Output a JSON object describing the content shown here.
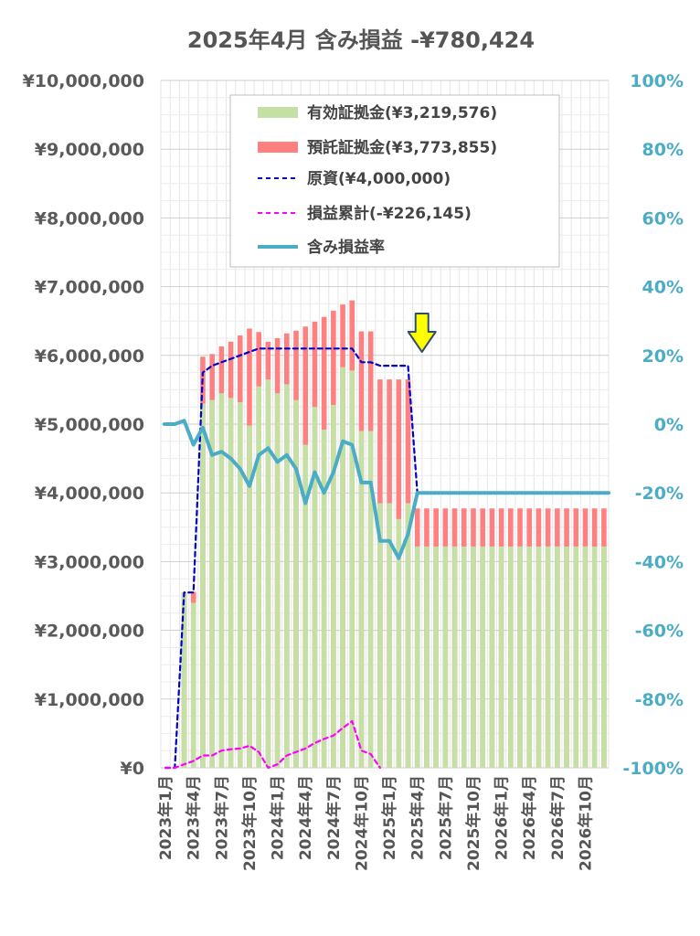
{
  "chart_data": {
    "type": "bar",
    "title": "2025年4月 含み損益 -¥780,424",
    "x": [
      "2023年1月",
      "2023年2月",
      "2023年3月",
      "2023年4月",
      "2023年5月",
      "2023年6月",
      "2023年7月",
      "2023年8月",
      "2023年9月",
      "2023年10月",
      "2023年11月",
      "2023年12月",
      "2024年1月",
      "2024年2月",
      "2024年3月",
      "2024年4月",
      "2024年5月",
      "2024年6月",
      "2024年7月",
      "2024年8月",
      "2024年9月",
      "2024年10月",
      "2024年11月",
      "2024年12月",
      "2025年1月",
      "2025年2月",
      "2025年3月",
      "2025年4月",
      "2025年5月",
      "2025年6月",
      "2025年7月",
      "2025年8月",
      "2025年9月",
      "2025年10月",
      "2025年11月",
      "2025年12月",
      "2026年1月",
      "2026年2月",
      "2026年3月",
      "2026年4月",
      "2026年5月",
      "2026年6月",
      "2026年7月",
      "2026年8月",
      "2026年9月",
      "2026年10月",
      "2026年11月",
      "2026年12月"
    ],
    "x_tick_labels": [
      "2023年1月",
      "2023年4月",
      "2023年7月",
      "2023年10月",
      "2024年1月",
      "2024年4月",
      "2024年7月",
      "2024年10月",
      "2025年1月",
      "2025年4月",
      "2025年7月",
      "2025年10月",
      "2026年1月",
      "2026年4月",
      "2026年7月",
      "2026年10月"
    ],
    "y_left_ticks": [
      "¥0",
      "¥1,000,000",
      "¥2,000,000",
      "¥3,000,000",
      "¥4,000,000",
      "¥5,000,000",
      "¥6,000,000",
      "¥7,000,000",
      "¥8,000,000",
      "¥9,000,000",
      "¥10,000,000"
    ],
    "y_right_ticks": [
      "-100%",
      "-80%",
      "-60%",
      "-40%",
      "-20%",
      "0%",
      "20%",
      "40%",
      "60%",
      "80%",
      "100%"
    ],
    "ylim_left": [
      0,
      10000000
    ],
    "ylim_right": [
      -100,
      100
    ],
    "grid": true,
    "legend_position": "top",
    "series": [
      {
        "name": "有効証拠金(¥3,219,576)",
        "kind": "bar",
        "axis": "left",
        "color": "#c5e0a5",
        "values": [
          null,
          null,
          2550000,
          2400000,
          5300000,
          5350000,
          5450000,
          5380000,
          5320000,
          4980000,
          5550000,
          5650000,
          5450000,
          5580000,
          5350000,
          4700000,
          5250000,
          4920000,
          5280000,
          5830000,
          5780000,
          4900000,
          4900000,
          3850000,
          3850000,
          3620000,
          3850000,
          3220000,
          3220000,
          3220000,
          3220000,
          3220000,
          3220000,
          3220000,
          3220000,
          3220000,
          3220000,
          3220000,
          3220000,
          3220000,
          3220000,
          3220000,
          3220000,
          3220000,
          3220000,
          3220000,
          3220000,
          3220000
        ]
      },
      {
        "name": "預託証拠金(¥3,773,855)",
        "kind": "bar",
        "axis": "left",
        "color": "#ff8080",
        "values": [
          null,
          null,
          2550000,
          2560000,
          5980000,
          6020000,
          6130000,
          6200000,
          6290000,
          6390000,
          6340000,
          6200000,
          6250000,
          6320000,
          6360000,
          6420000,
          6490000,
          6560000,
          6650000,
          6740000,
          6800000,
          6350000,
          6350000,
          5650000,
          5650000,
          5650000,
          5650000,
          3773855,
          3773855,
          3773855,
          3773855,
          3773855,
          3773855,
          3773855,
          3773855,
          3773855,
          3773855,
          3773855,
          3773855,
          3773855,
          3773855,
          3773855,
          3773855,
          3773855,
          3773855,
          3773855,
          3773855,
          3773855
        ]
      },
      {
        "name": "原資(¥4,000,000)",
        "kind": "line",
        "style": "dashed",
        "axis": "left",
        "color": "#0000cc",
        "values": [
          0,
          0,
          2550000,
          2550000,
          5750000,
          5850000,
          5900000,
          5950000,
          6000000,
          6050000,
          6100000,
          6100000,
          6100000,
          6100000,
          6100000,
          6100000,
          6100000,
          6100000,
          6100000,
          6100000,
          6100000,
          5900000,
          5900000,
          5850000,
          5850000,
          5850000,
          5850000,
          4000000,
          null,
          null,
          null,
          null,
          null,
          null,
          null,
          null,
          null,
          null,
          null,
          null,
          null,
          null,
          null,
          null,
          null,
          null,
          null,
          null
        ]
      },
      {
        "name": "損益累計(-¥226,145)",
        "kind": "line",
        "style": "dashed",
        "axis": "left",
        "color": "#ff00ff",
        "values": [
          0,
          0,
          50000,
          100000,
          180000,
          180000,
          250000,
          270000,
          280000,
          320000,
          230000,
          0,
          50000,
          180000,
          230000,
          280000,
          360000,
          420000,
          470000,
          580000,
          680000,
          250000,
          200000,
          0,
          null,
          null,
          null,
          null,
          null,
          null,
          null,
          null,
          null,
          null,
          null,
          null,
          null,
          null,
          null,
          null,
          null,
          null,
          null,
          null,
          null,
          null,
          null,
          null
        ]
      },
      {
        "name": "含み損益率",
        "kind": "line",
        "style": "solid",
        "axis": "right",
        "color": "#4bacc6",
        "values": [
          0,
          0,
          1,
          -6,
          -1,
          -9,
          -8,
          -10,
          -13,
          -18,
          -9,
          -7,
          -11,
          -9,
          -13,
          -23,
          -14,
          -20,
          -14,
          -5,
          -6,
          -17,
          -17,
          -34,
          -34,
          -39,
          -32,
          -20,
          -20,
          -20,
          -20,
          -20,
          -20,
          -20,
          -20,
          -20,
          -20,
          -20,
          -20,
          -20,
          -20,
          -20,
          -20,
          -20,
          -20,
          -20,
          -20,
          -20
        ]
      }
    ],
    "marker_month": "2025年4月",
    "marker_color": "#ffff00"
  }
}
